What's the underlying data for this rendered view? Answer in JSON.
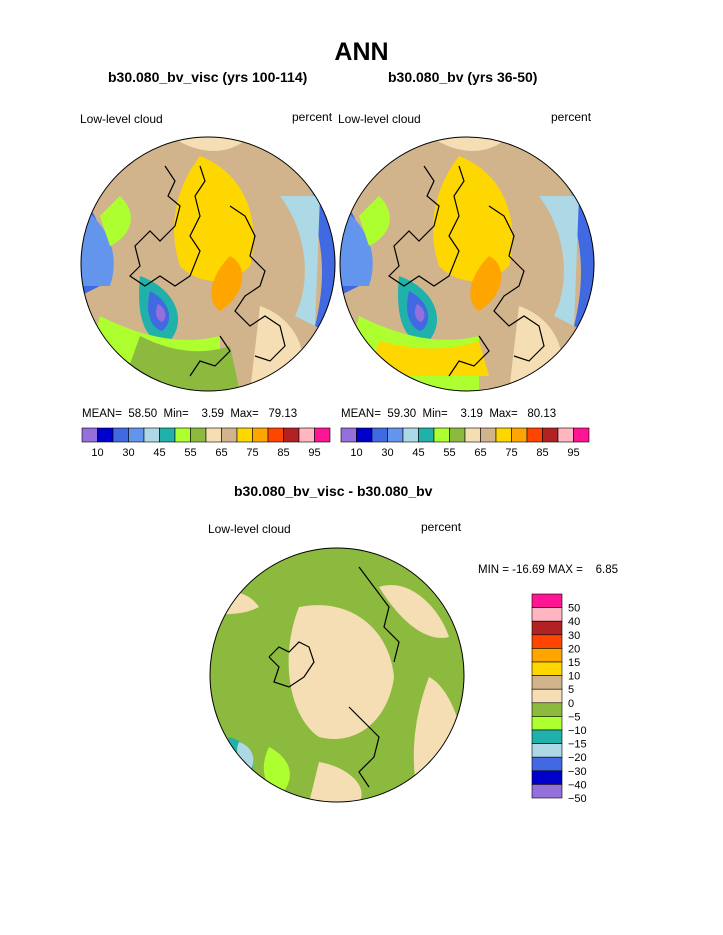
{
  "page": {
    "title": "ANN",
    "diff_title": "b30.080_bv_visc - b30.080_bv"
  },
  "panels": [
    {
      "case_title": "b30.080_bv_visc (yrs 100-114)",
      "variable": "Low-level cloud",
      "units": "percent",
      "stats": {
        "mean_label": "MEAN=",
        "mean": "58.50",
        "min_label": "Min=",
        "min": "3.59",
        "max_label": "Max=",
        "max": "79.13"
      }
    },
    {
      "case_title": "b30.080_bv (yrs 36-50)",
      "variable": "Low-level cloud",
      "units": "percent",
      "stats": {
        "mean_label": "MEAN=",
        "mean": "59.30",
        "min_label": "Min=",
        "min": "3.19",
        "max_label": "Max=",
        "max": "80.13"
      }
    }
  ],
  "diff_panel": {
    "variable": "Low-level cloud",
    "units": "percent",
    "minmax": "MIN = -16.69 MAX =    6.85"
  },
  "colorbar": {
    "colors": [
      "#9370db",
      "#0000cd",
      "#4169e1",
      "#6495ed",
      "#add8e6",
      "#20b2aa",
      "#adff2f",
      "#8cba3f",
      "#f5deb3",
      "#d2b48c",
      "#ffd700",
      "#ffa500",
      "#ff4500",
      "#b22222",
      "#ffb6c1",
      "#ff1493"
    ],
    "tick_labels": [
      "10",
      "30",
      "45",
      "55",
      "65",
      "75",
      "85",
      "95"
    ]
  },
  "diff_colorbar": {
    "colors": [
      "#ff1493",
      "#ffb6c1",
      "#b22222",
      "#ff4500",
      "#ffa500",
      "#ffd700",
      "#d2b48c",
      "#f5deb3",
      "#8cba3f",
      "#adff2f",
      "#20b2aa",
      "#add8e6",
      "#4169e1",
      "#0000cd",
      "#9370db"
    ],
    "labels": [
      "50",
      "40",
      "30",
      "20",
      "15",
      "10",
      "5",
      "0",
      "−5",
      "−10",
      "−15",
      "−20",
      "−30",
      "−40",
      "−50"
    ]
  }
}
